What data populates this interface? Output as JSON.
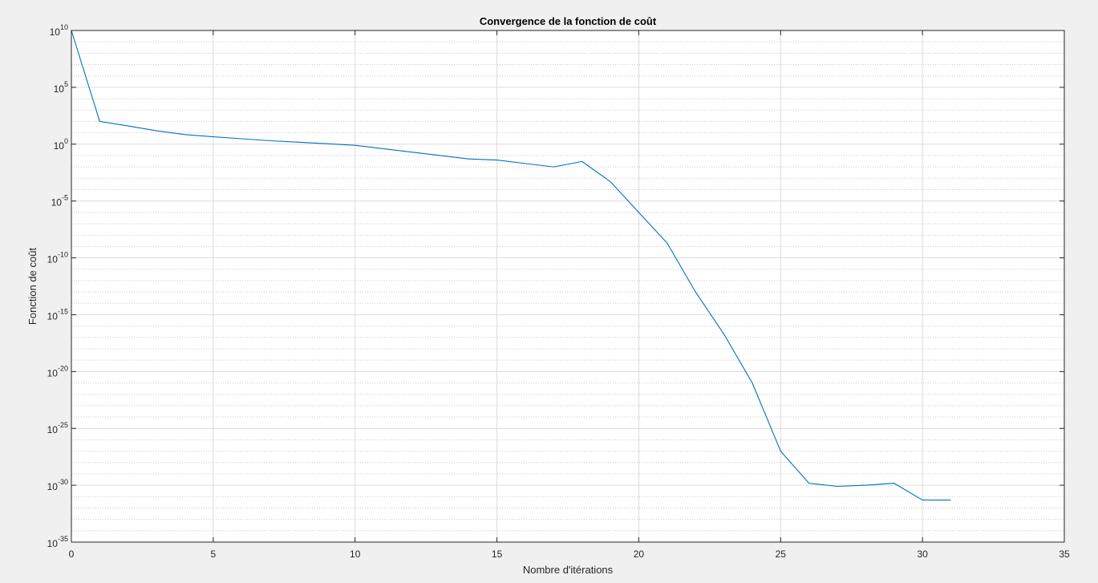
{
  "chart_data": {
    "type": "line",
    "title": "Convergence de la fonction de coût",
    "xlabel": "Nombre d'itérations",
    "ylabel": "Fonction de coût",
    "xlim": [
      0,
      35
    ],
    "ylim": [
      1e-35,
      10000000000.0
    ],
    "yscale": "log",
    "x_ticks": [
      "0",
      "5",
      "10",
      "15",
      "20",
      "25",
      "30",
      "35"
    ],
    "y_ticks": [
      {
        "base": "10",
        "exp": "10"
      },
      {
        "base": "10",
        "exp": "5"
      },
      {
        "base": "10",
        "exp": "0"
      },
      {
        "base": "10",
        "exp": "-5"
      },
      {
        "base": "10",
        "exp": "-10"
      },
      {
        "base": "10",
        "exp": "-15"
      },
      {
        "base": "10",
        "exp": "-20"
      },
      {
        "base": "10",
        "exp": "-25"
      },
      {
        "base": "10",
        "exp": "-30"
      },
      {
        "base": "10",
        "exp": "-35"
      }
    ],
    "grid": true,
    "minor_grid": true,
    "series": [
      {
        "color": "#0072bd",
        "x": [
          0,
          1,
          2,
          3,
          4,
          5,
          6,
          7,
          8,
          9,
          10,
          11,
          12,
          13,
          14,
          15,
          16,
          17,
          18,
          19,
          20,
          21,
          22,
          23,
          24,
          25,
          26,
          27,
          28,
          29,
          30,
          31
        ],
        "y": [
          10000000000.0,
          100,
          40,
          15,
          7,
          4.5,
          3,
          2,
          1.5,
          1.1,
          0.8,
          0.4,
          0.2,
          0.1,
          0.05,
          0.04,
          0.02,
          0.01,
          0.03,
          0.0005,
          1e-06,
          2e-09,
          1e-13,
          2e-17,
          1e-21,
          1e-27,
          1.5e-30,
          8e-31,
          1e-30,
          1.5e-30,
          5e-32,
          5e-32
        ]
      }
    ]
  }
}
